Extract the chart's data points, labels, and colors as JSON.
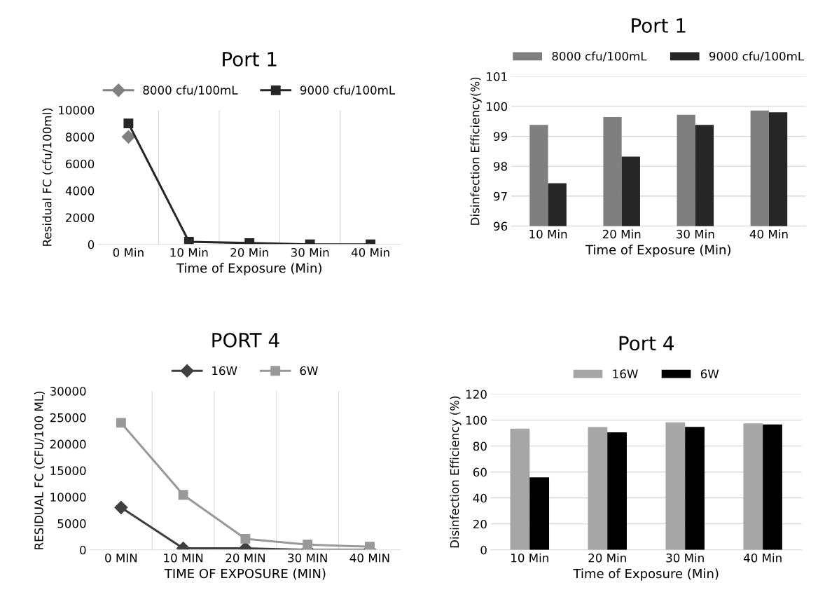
{
  "chart_data": [
    {
      "type": "line",
      "title": "Port 1",
      "xlabel": "Time of Exposure (Min)",
      "ylabel": "Residual FC (cfu/100ml)",
      "categories": [
        "0 Min",
        "10 Min",
        "20 Min",
        "30 Min",
        "40 Min"
      ],
      "series": [
        {
          "name": "8000 cfu/100mL",
          "color": "#808080",
          "marker": "diamond",
          "values": [
            8000,
            null,
            null,
            null,
            null
          ]
        },
        {
          "name": "9000 cfu/100mL",
          "color": "#262626",
          "marker": "square",
          "values": [
            9000,
            200,
            100,
            0,
            0
          ]
        }
      ],
      "ylim": [
        0,
        10000
      ],
      "yticks": [
        0,
        2000,
        4000,
        6000,
        8000,
        10000
      ],
      "grid": "x",
      "legend": "top"
    },
    {
      "type": "bar",
      "title": "Port 1",
      "xlabel": "Time of Exposure (Min)",
      "ylabel": "Disinfection Efficiency(%)",
      "categories": [
        "10 Min",
        "20 Min",
        "30 Min",
        "40 Min"
      ],
      "series": [
        {
          "name": "8000 cfu/100mL",
          "color": "#7f7f7f",
          "values": [
            99.38,
            99.64,
            99.72,
            99.86
          ]
        },
        {
          "name": "9000 cfu/100mL",
          "color": "#262626",
          "values": [
            97.43,
            98.32,
            99.38,
            99.8
          ]
        }
      ],
      "ylim": [
        96,
        101
      ],
      "yticks": [
        96,
        97,
        98,
        99,
        100,
        101
      ],
      "grid": "y",
      "legend": "top"
    },
    {
      "type": "line",
      "title": "PORT 4",
      "xlabel": "TIME OF EXPOSURE (MIN)",
      "ylabel": "RESIDUAL FC (CFU/100 ML)",
      "categories": [
        "0 MIN",
        "10 MIN",
        "20 MIN",
        "30 MIN",
        "40 MIN"
      ],
      "series": [
        {
          "name": "16W",
          "color": "#404040",
          "marker": "diamond",
          "values": [
            8000,
            300,
            300,
            0,
            0
          ]
        },
        {
          "name": "6W",
          "color": "#999999",
          "marker": "square",
          "values": [
            24000,
            10400,
            2100,
            1000,
            600
          ]
        }
      ],
      "ylim": [
        0,
        30000
      ],
      "yticks": [
        0,
        5000,
        10000,
        15000,
        20000,
        25000,
        30000
      ],
      "grid": "x",
      "legend": "top"
    },
    {
      "type": "bar",
      "title": "Port 4",
      "xlabel": "Time of Exposure (Min)",
      "ylabel": "Disinfection Efficiency (%)",
      "categories": [
        "10 Min",
        "20 Min",
        "30 Min",
        "40 Min"
      ],
      "series": [
        {
          "name": "16W",
          "color": "#a6a6a6",
          "values": [
            93.4,
            94.6,
            98.2,
            97.5
          ]
        },
        {
          "name": "6W",
          "color": "#000000",
          "values": [
            55.9,
            90.5,
            94.8,
            96.6
          ]
        }
      ],
      "ylim": [
        0,
        120
      ],
      "yticks": [
        0,
        20,
        40,
        60,
        80,
        100,
        120
      ],
      "grid": "y",
      "legend": "top"
    }
  ]
}
